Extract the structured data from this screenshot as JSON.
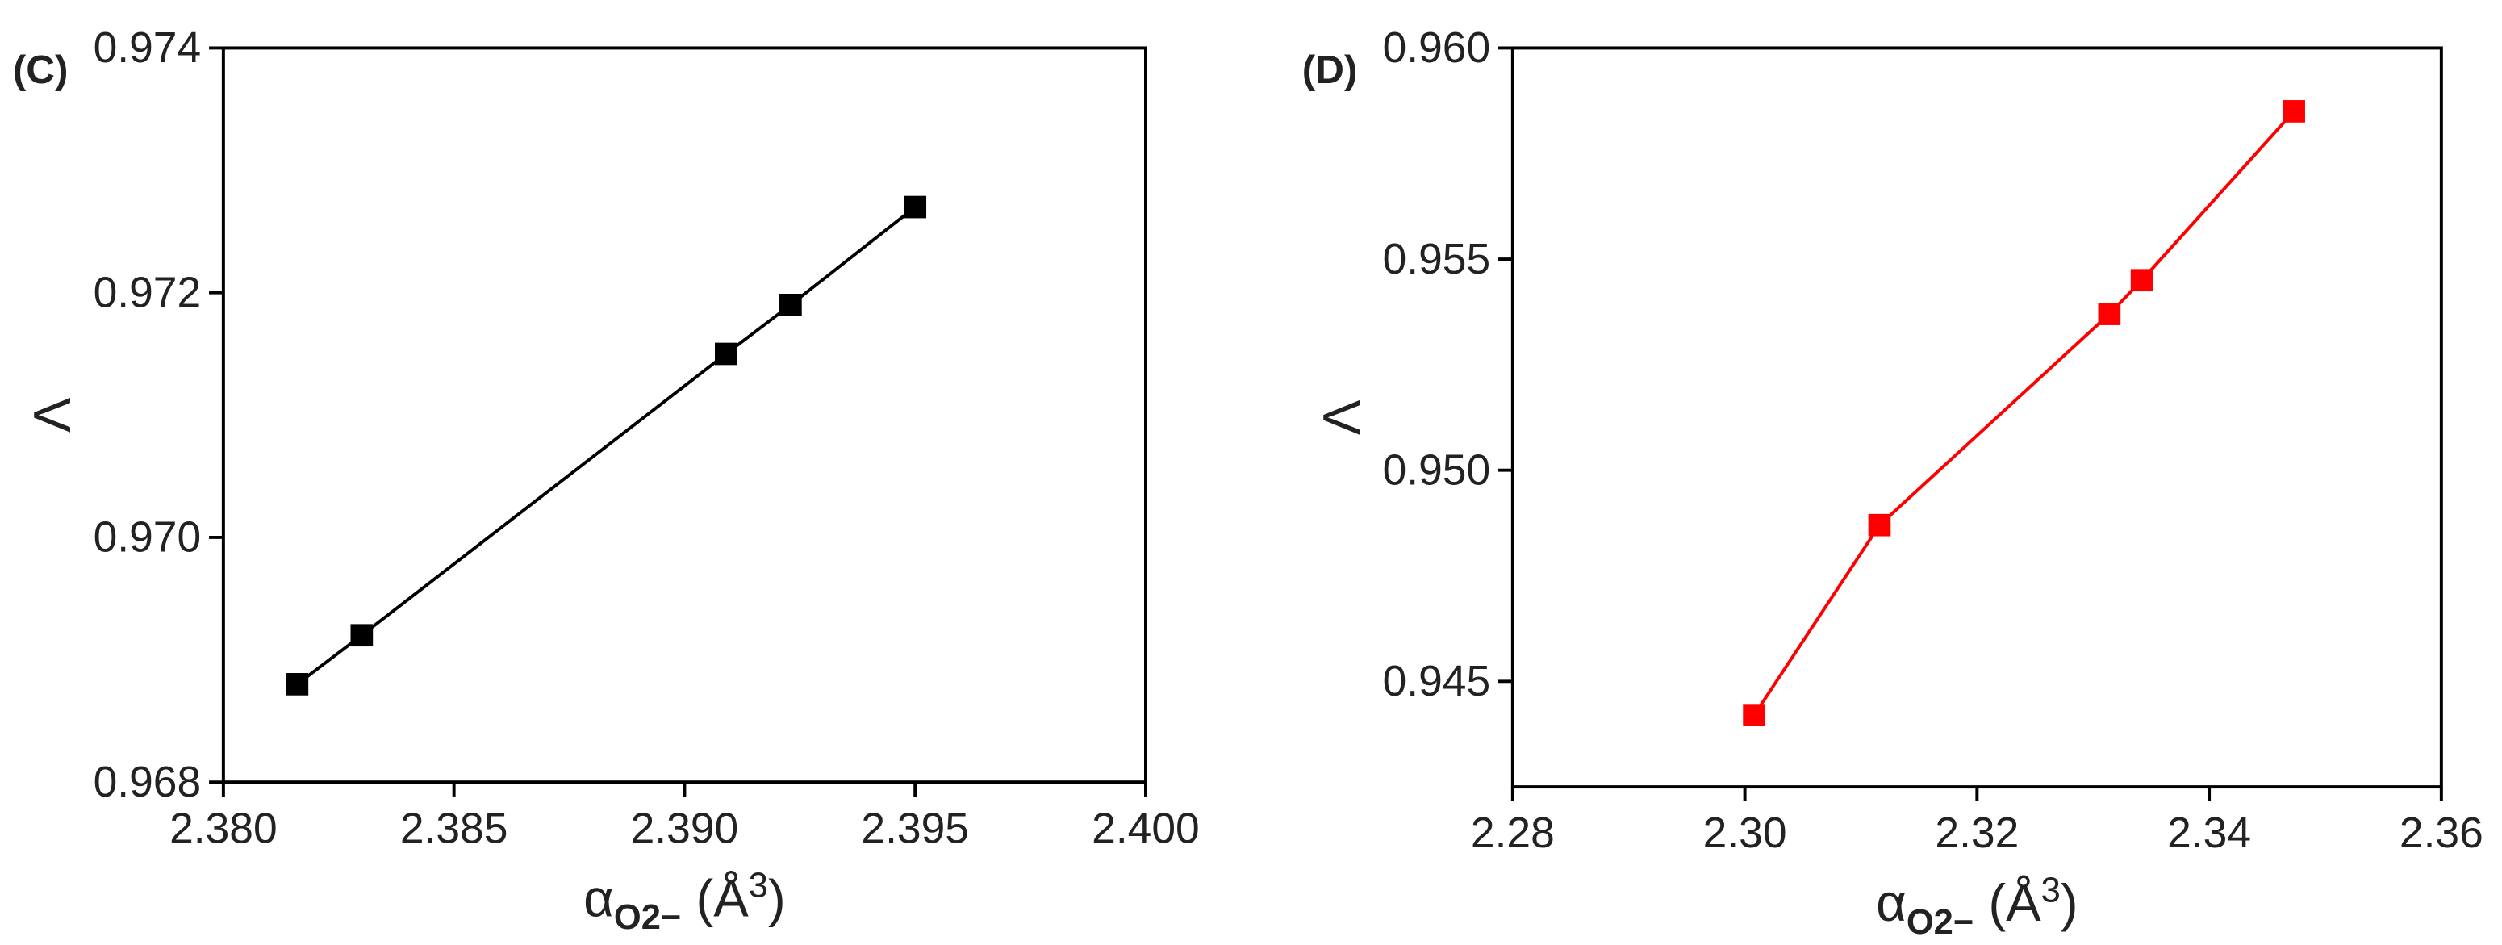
{
  "chart_data": [
    {
      "type": "line",
      "panel_label": "(C)",
      "marker": "square",
      "color": "#000000",
      "x": [
        2.3816,
        2.383,
        2.3909,
        2.3923,
        2.395
      ],
      "values": [
        0.9688,
        0.9692,
        0.9715,
        0.9719,
        0.9727
      ],
      "xlim": [
        2.38,
        2.4
      ],
      "xticks": [
        {
          "value": 2.38,
          "label": "2.380"
        },
        2.385,
        {
          "value": 2.39,
          "label": "2.390"
        },
        2.395,
        {
          "value": 2.4,
          "label": "2.400"
        }
      ],
      "ylim": [
        0.968,
        0.974
      ],
      "yticks": [
        0.968,
        {
          "value": 0.97,
          "label": "0.970"
        },
        0.972,
        0.974
      ],
      "xlabel_parts": [
        "α",
        "O2−",
        " (Å",
        "3",
        ")"
      ],
      "ylabel": "Λ"
    },
    {
      "type": "line",
      "panel_label": "(D)",
      "marker": "square",
      "color": "#ff0000",
      "x": [
        2.3008,
        2.3116,
        2.3314,
        2.3342,
        2.3473
      ],
      "values": [
        0.9442,
        0.9487,
        0.9537,
        0.9545,
        0.9585
      ],
      "xlim": [
        2.28,
        2.36
      ],
      "xticks": [
        2.28,
        {
          "value": 2.3,
          "label": "2.30"
        },
        2.32,
        2.34,
        2.36
      ],
      "ylim": [
        0.9425,
        0.96
      ],
      "yticks": [
        0.945,
        {
          "value": 0.95,
          "label": "0.950"
        },
        0.955,
        {
          "value": 0.96,
          "label": "0.960"
        }
      ],
      "xlabel_parts": [
        "α",
        "O2−",
        " (Å",
        "3",
        ")"
      ],
      "ylabel": "Λ"
    }
  ]
}
